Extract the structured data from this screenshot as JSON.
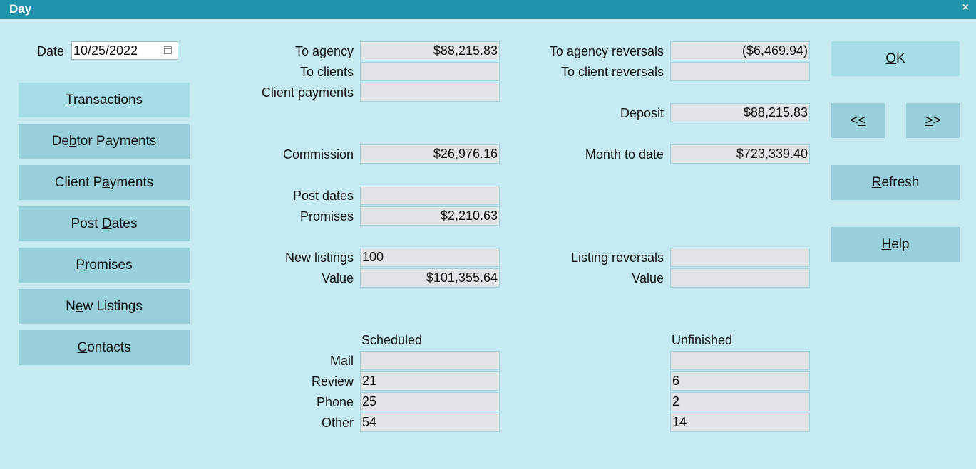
{
  "window": {
    "title": "Day",
    "close_glyph": "×"
  },
  "date": {
    "label": "Date",
    "value": "10/25/2022",
    "icon": "calendar-icon"
  },
  "nav_buttons": [
    {
      "pre": "",
      "acc": "T",
      "post": "ransactions"
    },
    {
      "pre": "De",
      "acc": "b",
      "post": "tor Payments"
    },
    {
      "pre": "Client P",
      "acc": "a",
      "post": "yments"
    },
    {
      "pre": "Post ",
      "acc": "D",
      "post": "ates"
    },
    {
      "pre": "",
      "acc": "P",
      "post": "romises"
    },
    {
      "pre": "N",
      "acc": "e",
      "post": "w Listings"
    },
    {
      "pre": "",
      "acc": "C",
      "post": "ontacts"
    }
  ],
  "middle": {
    "to_agency": {
      "label": "To agency",
      "value": "$88,215.83"
    },
    "to_clients": {
      "label": "To clients",
      "value": ""
    },
    "client_payments": {
      "label": "Client payments",
      "value": ""
    },
    "commission": {
      "label": "Commission",
      "value": "$26,976.16"
    },
    "post_dates": {
      "label": "Post dates",
      "value": ""
    },
    "promises": {
      "label": "Promises",
      "value": "$2,210.63"
    },
    "new_listings": {
      "label": "New listings",
      "value": "100"
    },
    "value": {
      "label": "Value",
      "value": "$101,355.64"
    }
  },
  "right": {
    "to_agency_reversals": {
      "label": "To agency reversals",
      "value": "($6,469.94)"
    },
    "to_client_reversals": {
      "label": "To client reversals",
      "value": ""
    },
    "deposit": {
      "label": "Deposit",
      "value": "$88,215.83"
    },
    "month_to_date": {
      "label": "Month to date",
      "value": "$723,339.40"
    },
    "listing_reversals": {
      "label": "Listing reversals",
      "value": ""
    },
    "value": {
      "label": "Value",
      "value": ""
    }
  },
  "tasks": {
    "scheduled_header": "Scheduled",
    "unfinished_header": "Unfinished",
    "rows": [
      {
        "label": "Mail",
        "scheduled": "",
        "unfinished": ""
      },
      {
        "label": "Review",
        "scheduled": "21",
        "unfinished": "6"
      },
      {
        "label": "Phone",
        "scheduled": "25",
        "unfinished": "2"
      },
      {
        "label": "Other",
        "scheduled": "54",
        "unfinished": "14"
      }
    ]
  },
  "action_buttons": {
    "ok": {
      "pre": "",
      "acc": "O",
      "post": "K"
    },
    "prev": {
      "pre": "<",
      "acc": "<",
      "post": ""
    },
    "next": {
      "pre": "",
      "acc": ">",
      "post": ">"
    },
    "refresh": {
      "pre": "",
      "acc": "R",
      "post": "efresh"
    },
    "help": {
      "pre": "",
      "acc": "H",
      "post": "elp"
    }
  }
}
